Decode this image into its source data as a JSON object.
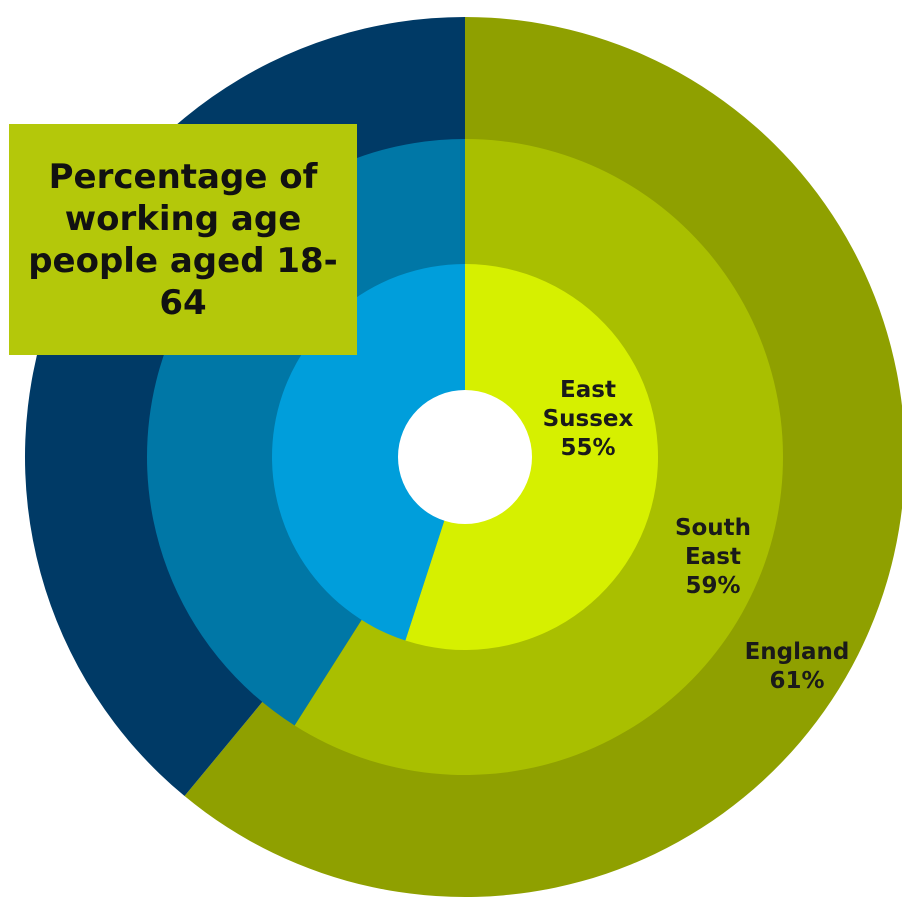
{
  "chart_data": {
    "type": "pie",
    "variant": "concentric-donut",
    "title": "Percentage of working age people aged 18-64",
    "series": [
      {
        "name": "England",
        "label": "England",
        "value": 61,
        "value_label": "61%",
        "color": "#8fa000",
        "remainder_color": "#003a66"
      },
      {
        "name": "South East",
        "label": "South East",
        "value": 59,
        "value_label": "59%",
        "color": "#a9bf00",
        "remainder_color": "#0077a6"
      },
      {
        "name": "East Sussex",
        "label": "East Sussex",
        "value": 55,
        "value_label": "55%",
        "color": "#d6f000",
        "remainder_color": "#009edb"
      }
    ],
    "ring_order": "outer-to-inner"
  }
}
